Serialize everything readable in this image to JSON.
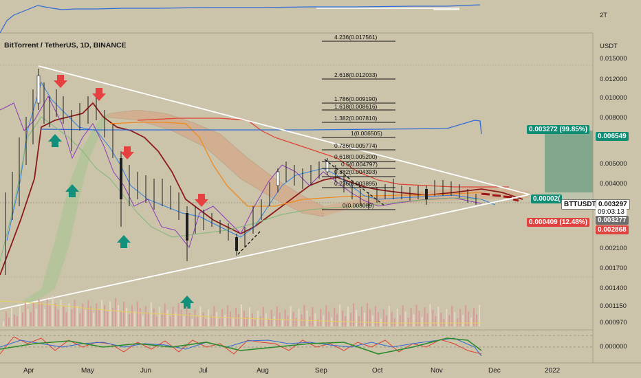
{
  "header": {
    "title": "BitTorrent / TetherUS, 1D, BINANCE",
    "currency": "USDT",
    "volume_axis_label": "2T"
  },
  "chart_data": {
    "type": "line",
    "symbol": "BTTUSDT",
    "price_axis_ticks": [
      "0.015000",
      "0.012000",
      "0.010000",
      "0.008000",
      "0.006549",
      "0.005000",
      "0.004000",
      "0.003297",
      "0.003277",
      "0.002868",
      "0.002100",
      "0.001700",
      "0.001400",
      "0.001150",
      "0.000970"
    ],
    "oscillator_ticks": [
      "0.000000"
    ],
    "x_tick_labels": [
      "Apr",
      "May",
      "Jun",
      "Jul",
      "Aug",
      "Sep",
      "Oct",
      "Nov",
      "Dec",
      "2022"
    ],
    "fib_levels": [
      {
        "label": "4.236(0.017561)"
      },
      {
        "label": "2.618(0.012033)"
      },
      {
        "label": "1.786(0.009190)"
      },
      {
        "label": "1.618(0.008616)"
      },
      {
        "label": "1.382(0.007810)"
      },
      {
        "label": "1(0.006505)"
      },
      {
        "label": "0.786(0.005774)"
      },
      {
        "label": "0.618(0.005200)"
      },
      {
        "label": "0.5(0.004797)"
      },
      {
        "label": "0.382(0.004393)"
      },
      {
        "label": "0.236(0.003895)"
      },
      {
        "label": "0(0.003089)"
      }
    ],
    "price_close": [
      0.0012,
      0.0058,
      0.0092,
      0.0118,
      0.0105,
      0.0098,
      0.0088,
      0.0082,
      0.0093,
      0.0085,
      0.0078,
      0.0062,
      0.0046,
      0.0041,
      0.0036,
      0.0032,
      0.0028,
      0.0025,
      0.0029,
      0.0027,
      0.0024,
      0.0022,
      0.0019,
      0.0023,
      0.0031,
      0.0039,
      0.0045,
      0.0049,
      0.0043,
      0.004,
      0.0036,
      0.0034,
      0.0033,
      0.0034,
      0.0035,
      0.0036,
      0.0034,
      0.0033
    ],
    "position": {
      "target_label": "0.003272 (99.85%)",
      "stop_label": "0.000409 (12.48%)",
      "mid_label": "0.00002(",
      "countdown": "09:03:13",
      "target_price": "0.006549",
      "current_price": "0.003297",
      "ref_price": "0.003277",
      "stop_price": "0.002868"
    },
    "colors": {
      "up_arrow": "#12907b",
      "down_arrow": "#e64040",
      "target_zone": "#1d9e82",
      "stop_zone": "#e0433f",
      "main_ma": "#8b1a1a",
      "cloud": "#d99a7a",
      "cloud_green": "#9ec58f",
      "trend_line": "#ffffff"
    }
  }
}
